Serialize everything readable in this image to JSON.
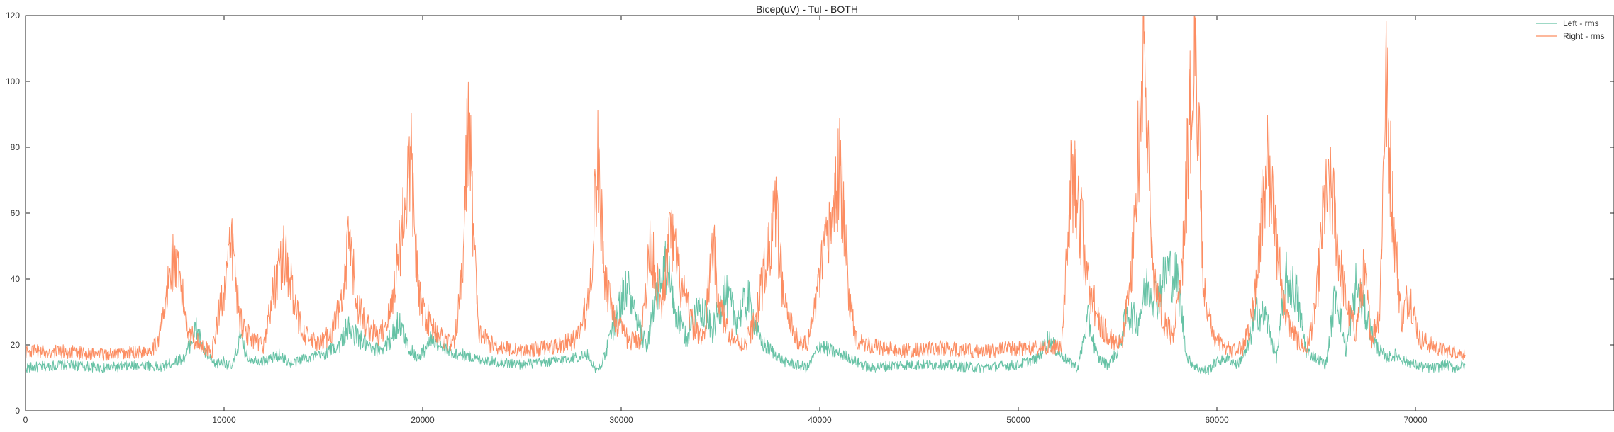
{
  "chart_data": {
    "type": "line",
    "title": "Bicep(uV) - Tul - BOTH",
    "xlabel": "",
    "ylabel": "",
    "xlim": [
      0,
      80000
    ],
    "ylim": [
      0,
      120
    ],
    "xticks": [
      0,
      10000,
      20000,
      30000,
      40000,
      50000,
      60000,
      70000
    ],
    "xtick_labels": [
      "0",
      "10000",
      "20000",
      "30000",
      "40000",
      "50000",
      "60000",
      "70000"
    ],
    "yticks": [
      0,
      20,
      40,
      60,
      80,
      100,
      120
    ],
    "ytick_labels": [
      "0",
      "20",
      "40",
      "60",
      "80",
      "100",
      "120"
    ],
    "grid": false,
    "legend_position": "top-right",
    "series": [
      {
        "name": "Left - rms",
        "color": "#66c2a5",
        "x": [
          0,
          2000,
          4000,
          6000,
          6800,
          7500,
          8000,
          8600,
          9000,
          9500,
          10000,
          10400,
          10800,
          11200,
          12000,
          12800,
          13400,
          14000,
          15000,
          15800,
          16200,
          16800,
          17500,
          18200,
          18800,
          19300,
          19800,
          20500,
          21200,
          22000,
          22600,
          23500,
          25000,
          26500,
          27500,
          28300,
          28800,
          29200,
          29800,
          30300,
          30800,
          31300,
          31800,
          32300,
          32800,
          33300,
          34000,
          34600,
          35200,
          35800,
          36400,
          37000,
          37600,
          38200,
          38800,
          39400,
          40000,
          40600,
          41200,
          41800,
          42500,
          44000,
          46000,
          48000,
          50000,
          51000,
          51500,
          52000,
          52500,
          53000,
          53500,
          54000,
          54500,
          55000,
          55500,
          56000,
          56500,
          57000,
          57500,
          58000,
          58500,
          59000,
          59500,
          60000,
          60500,
          61000,
          61500,
          62000,
          62500,
          63000,
          63500,
          64000,
          64500,
          65000,
          65500,
          66000,
          66500,
          67000,
          67500,
          68000,
          68500,
          69000,
          69500,
          70000,
          70500,
          71000,
          71500,
          72000,
          72500
        ],
        "values": [
          13,
          14,
          13,
          14,
          13,
          15,
          16,
          25,
          18,
          14,
          15,
          13,
          22,
          16,
          15,
          17,
          14,
          16,
          17,
          20,
          25,
          22,
          18,
          20,
          27,
          19,
          16,
          22,
          18,
          17,
          16,
          15,
          14,
          15,
          16,
          17,
          12,
          17,
          30,
          38,
          26,
          20,
          35,
          44,
          28,
          22,
          33,
          24,
          36,
          28,
          34,
          21,
          18,
          15,
          14,
          13,
          20,
          18,
          17,
          15,
          13,
          14,
          14,
          13,
          14,
          16,
          22,
          18,
          15,
          13,
          28,
          16,
          14,
          18,
          30,
          27,
          38,
          34,
          43,
          40,
          16,
          13,
          12,
          15,
          16,
          14,
          18,
          30,
          28,
          16,
          40,
          36,
          18,
          16,
          14,
          37,
          18,
          38,
          29,
          20,
          16,
          17,
          15,
          14,
          13,
          13,
          14,
          13,
          14
        ]
      },
      {
        "name": "Right - rms",
        "color": "#fc8d62",
        "x": [
          0,
          2000,
          4000,
          6000,
          6600,
          7000,
          7400,
          7800,
          8200,
          8800,
          9400,
          10000,
          10400,
          10800,
          11400,
          12000,
          12600,
          13100,
          13600,
          14200,
          14800,
          15400,
          16000,
          16300,
          16700,
          17200,
          17800,
          18400,
          19000,
          19400,
          19800,
          20400,
          21000,
          21600,
          22000,
          22300,
          22800,
          23500,
          25000,
          26000,
          27000,
          27800,
          28400,
          28800,
          29200,
          29800,
          30400,
          31000,
          31500,
          32000,
          32500,
          33000,
          33600,
          34200,
          34600,
          35000,
          35600,
          36200,
          36800,
          37400,
          37800,
          38200,
          38800,
          39400,
          40000,
          40600,
          41000,
          41400,
          41800,
          42500,
          44000,
          46000,
          48000,
          50000,
          51500,
          52200,
          52700,
          53100,
          53500,
          54000,
          54600,
          55200,
          55800,
          56300,
          56800,
          57300,
          57800,
          58300,
          58900,
          59300,
          59800,
          60300,
          60800,
          61300,
          61800,
          62300,
          62600,
          63000,
          63500,
          64000,
          64500,
          65000,
          65400,
          65800,
          66200,
          66600,
          67000,
          67400,
          67800,
          68200,
          68500,
          68900,
          69300,
          69700,
          70200,
          70800,
          71500,
          72000,
          72500
        ],
        "values": [
          18,
          18,
          17,
          18,
          20,
          30,
          46,
          38,
          24,
          20,
          18,
          38,
          50,
          28,
          21,
          20,
          40,
          48,
          30,
          22,
          20,
          24,
          34,
          52,
          32,
          26,
          22,
          30,
          58,
          76,
          34,
          26,
          22,
          20,
          42,
          90,
          24,
          20,
          18,
          19,
          20,
          22,
          34,
          76,
          40,
          26,
          21,
          22,
          52,
          30,
          54,
          38,
          26,
          22,
          52,
          30,
          22,
          20,
          28,
          48,
          60,
          32,
          22,
          20,
          40,
          58,
          74,
          40,
          22,
          20,
          18,
          19,
          18,
          19,
          19,
          20,
          72,
          60,
          40,
          28,
          22,
          20,
          48,
          112,
          40,
          28,
          22,
          50,
          120,
          40,
          22,
          20,
          18,
          19,
          30,
          62,
          76,
          50,
          28,
          22,
          18,
          32,
          62,
          66,
          44,
          30,
          24,
          42,
          22,
          30,
          102,
          56,
          28,
          36,
          22,
          20,
          18,
          18,
          17
        ]
      }
    ]
  }
}
